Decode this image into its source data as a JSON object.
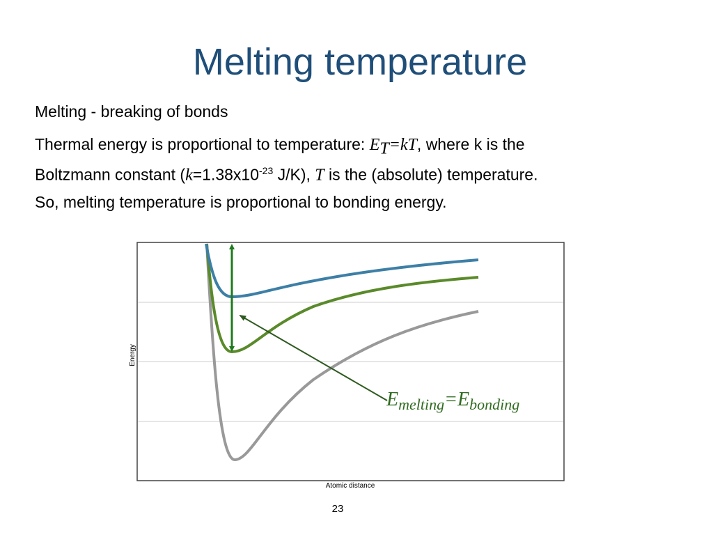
{
  "title": "Melting temperature",
  "bullets": [
    {
      "segments": [
        "Melting - breaking of bonds"
      ]
    },
    {
      "segments": [
        "Thermal energy is proportional to temperature: ",
        "E",
        "T",
        "=kT",
        ", where k is the",
        "Boltzmann constant (",
        "k",
        "=1.38x10",
        "-23",
        " J/K), ",
        "T",
        " is the (absolute) temperature."
      ]
    },
    {
      "segments": [
        "So, melting temperature is proportional to bonding energy."
      ]
    }
  ],
  "figure": {
    "y_label": "Energy",
    "x_label": "Atomic distance",
    "annotation": [
      "E",
      "melting",
      "=E",
      "bonding"
    ]
  },
  "page_number": "23"
}
